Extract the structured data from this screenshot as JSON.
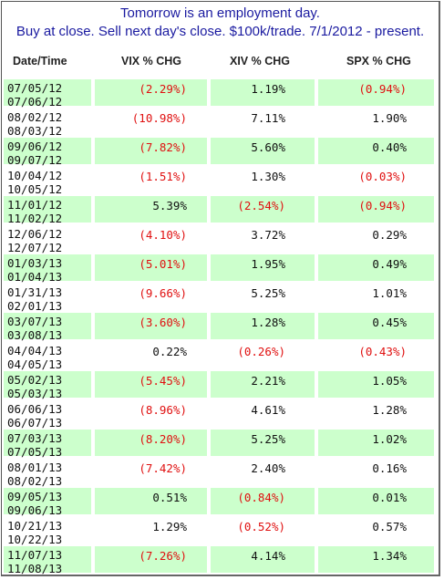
{
  "title": {
    "line1": "Tomorrow is an employment day.",
    "line2": "Buy at close. Sell next day's close. $100k/trade. 7/1/2012 - present."
  },
  "columns": [
    "Date/Time",
    "VIX % CHG",
    "XIV % CHG",
    "SPX % CHG"
  ],
  "rows": [
    {
      "d1": "07/05/12",
      "d2": "07/06/12",
      "vix": "(2.29%)",
      "xiv": "1.19%",
      "spx": "(0.94%)",
      "vix_neg": true,
      "xiv_neg": false,
      "spx_neg": true
    },
    {
      "d1": "08/02/12",
      "d2": "08/03/12",
      "vix": "(10.98%)",
      "xiv": "7.11%",
      "spx": "1.90%",
      "vix_neg": true,
      "xiv_neg": false,
      "spx_neg": false
    },
    {
      "d1": "09/06/12",
      "d2": "09/07/12",
      "vix": "(7.82%)",
      "xiv": "5.60%",
      "spx": "0.40%",
      "vix_neg": true,
      "xiv_neg": false,
      "spx_neg": false
    },
    {
      "d1": "10/04/12",
      "d2": "10/05/12",
      "vix": "(1.51%)",
      "xiv": "1.30%",
      "spx": "(0.03%)",
      "vix_neg": true,
      "xiv_neg": false,
      "spx_neg": true
    },
    {
      "d1": "11/01/12",
      "d2": "11/02/12",
      "vix": "5.39%",
      "xiv": "(2.54%)",
      "spx": "(0.94%)",
      "vix_neg": false,
      "xiv_neg": true,
      "spx_neg": true
    },
    {
      "d1": "12/06/12",
      "d2": "12/07/12",
      "vix": "(4.10%)",
      "xiv": "3.72%",
      "spx": "0.29%",
      "vix_neg": true,
      "xiv_neg": false,
      "spx_neg": false
    },
    {
      "d1": "01/03/13",
      "d2": "01/04/13",
      "vix": "(5.01%)",
      "xiv": "1.95%",
      "spx": "0.49%",
      "vix_neg": true,
      "xiv_neg": false,
      "spx_neg": false
    },
    {
      "d1": "01/31/13",
      "d2": "02/01/13",
      "vix": "(9.66%)",
      "xiv": "5.25%",
      "spx": "1.01%",
      "vix_neg": true,
      "xiv_neg": false,
      "spx_neg": false
    },
    {
      "d1": "03/07/13",
      "d2": "03/08/13",
      "vix": "(3.60%)",
      "xiv": "1.28%",
      "spx": "0.45%",
      "vix_neg": true,
      "xiv_neg": false,
      "spx_neg": false
    },
    {
      "d1": "04/04/13",
      "d2": "04/05/13",
      "vix": "0.22%",
      "xiv": "(0.26%)",
      "spx": "(0.43%)",
      "vix_neg": false,
      "xiv_neg": true,
      "spx_neg": true
    },
    {
      "d1": "05/02/13",
      "d2": "05/03/13",
      "vix": "(5.45%)",
      "xiv": "2.21%",
      "spx": "1.05%",
      "vix_neg": true,
      "xiv_neg": false,
      "spx_neg": false
    },
    {
      "d1": "06/06/13",
      "d2": "06/07/13",
      "vix": "(8.96%)",
      "xiv": "4.61%",
      "spx": "1.28%",
      "vix_neg": true,
      "xiv_neg": false,
      "spx_neg": false
    },
    {
      "d1": "07/03/13",
      "d2": "07/05/13",
      "vix": "(8.20%)",
      "xiv": "5.25%",
      "spx": "1.02%",
      "vix_neg": true,
      "xiv_neg": false,
      "spx_neg": false
    },
    {
      "d1": "08/01/13",
      "d2": "08/02/13",
      "vix": "(7.42%)",
      "xiv": "2.40%",
      "spx": "0.16%",
      "vix_neg": true,
      "xiv_neg": false,
      "spx_neg": false
    },
    {
      "d1": "09/05/13",
      "d2": "09/06/13",
      "vix": "0.51%",
      "xiv": "(0.84%)",
      "spx": "0.01%",
      "vix_neg": false,
      "xiv_neg": true,
      "spx_neg": false
    },
    {
      "d1": "10/21/13",
      "d2": "10/22/13",
      "vix": "1.29%",
      "xiv": "(0.52%)",
      "spx": "0.57%",
      "vix_neg": false,
      "xiv_neg": true,
      "spx_neg": false
    },
    {
      "d1": "11/07/13",
      "d2": "11/08/13",
      "vix": "(7.26%)",
      "xiv": "4.14%",
      "spx": "1.34%",
      "vix_neg": true,
      "xiv_neg": false,
      "spx_neg": false
    }
  ],
  "colors": {
    "highlight_row": "#ccffcc",
    "negative_text": "#e01010",
    "title_text": "#1a1aa0"
  }
}
